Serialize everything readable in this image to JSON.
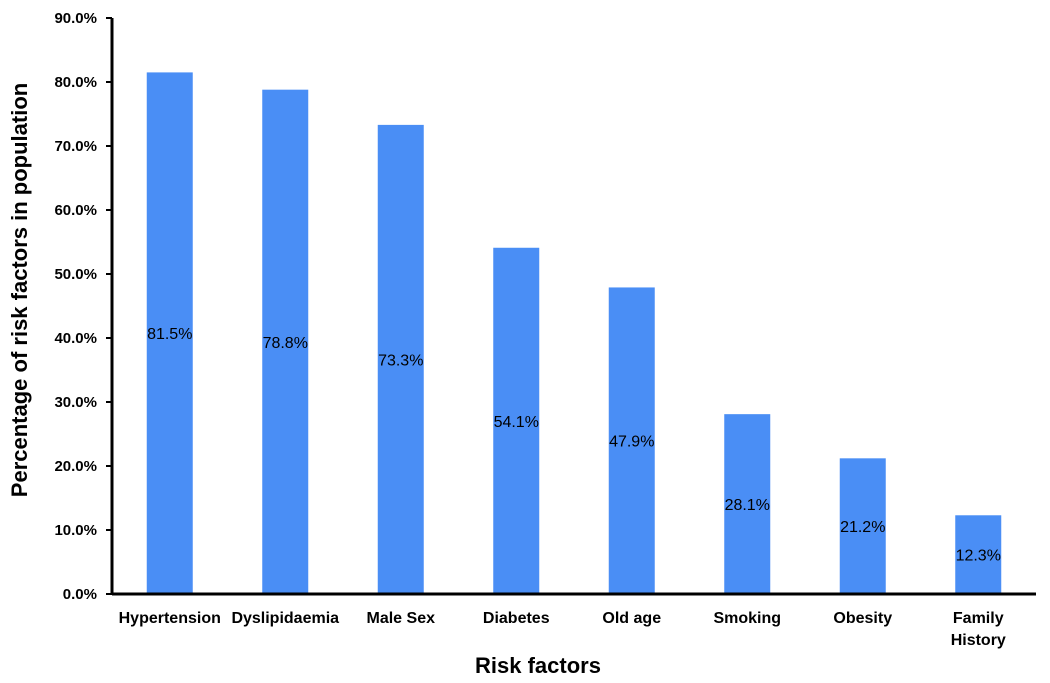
{
  "chart_data": {
    "type": "bar",
    "categories": [
      "Hypertension",
      "Dyslipidaemia",
      "Male Sex",
      "Diabetes",
      "Old age",
      "Smoking",
      "Obesity",
      "Family History"
    ],
    "category_lines": [
      [
        "Hypertension"
      ],
      [
        "Dyslipidaemia"
      ],
      [
        "Male Sex"
      ],
      [
        "Diabetes"
      ],
      [
        "Old age"
      ],
      [
        "Smoking"
      ],
      [
        "Obesity"
      ],
      [
        "Family",
        "History"
      ]
    ],
    "values": [
      81.5,
      78.8,
      73.3,
      54.1,
      47.9,
      28.1,
      21.2,
      12.3
    ],
    "data_labels": [
      "81.5%",
      "78.8%",
      "73.3%",
      "54.1%",
      "47.9%",
      "28.1%",
      "21.2%",
      "12.3%"
    ],
    "title": "",
    "xlabel": "Risk factors",
    "ylabel": "Percentage of risk factors in population",
    "ylim": [
      0,
      90
    ],
    "yticks": [
      "0.0%",
      "10.0%",
      "20.0%",
      "30.0%",
      "40.0%",
      "50.0%",
      "60.0%",
      "70.0%",
      "80.0%",
      "90.0%"
    ],
    "bar_color": "#4a8ef5",
    "grid": false,
    "legend": "none"
  }
}
